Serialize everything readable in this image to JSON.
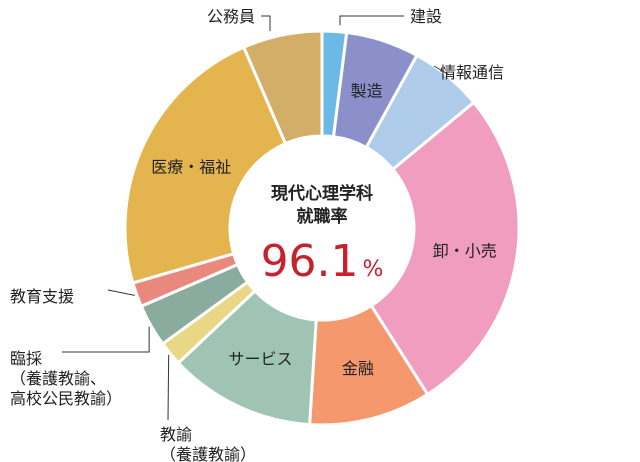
{
  "chart_data": {
    "type": "pie",
    "donut": true,
    "center_text": {
      "line1": "現代心理学科",
      "line2": "就職率",
      "value": "96.1",
      "unit": "%"
    },
    "slices": [
      {
        "label": "建設",
        "value": 2.0,
        "color": "#6cb8e6",
        "label_lines": [
          "建設"
        ]
      },
      {
        "label": "製造",
        "value": 6.0,
        "color": "#8b90cb",
        "label_lines": [
          "製造"
        ]
      },
      {
        "label": "情報通信",
        "value": 6.0,
        "color": "#aecbea",
        "label_lines": [
          "情報通信"
        ]
      },
      {
        "label": "卸・小売",
        "value": 27.0,
        "color": "#f09dc0",
        "label_lines": [
          "卸・小売"
        ]
      },
      {
        "label": "金融",
        "value": 10.0,
        "color": "#f5986e",
        "label_lines": [
          "金融"
        ]
      },
      {
        "label": "サービス",
        "value": 12.0,
        "color": "#9fc4b3",
        "label_lines": [
          "サービス"
        ]
      },
      {
        "label": "教諭（養護教諭）",
        "value": 2.0,
        "color": "#e8d886",
        "label_lines": [
          "教諭",
          "（養護教諭）"
        ]
      },
      {
        "label": "臨採（養護教諭、高校公民教諭）",
        "value": 3.5,
        "color": "#8aac9e",
        "label_lines": [
          "臨採",
          "（養護教諭、",
          "高校公民教諭）"
        ]
      },
      {
        "label": "教育支援",
        "value": 2.0,
        "color": "#e9897e",
        "label_lines": [
          "教育支援"
        ]
      },
      {
        "label": "医療・福祉",
        "value": 23.0,
        "color": "#e4b44f",
        "label_lines": [
          "医療・福祉"
        ]
      },
      {
        "label": "公務員",
        "value": 6.5,
        "color": "#d2ae69",
        "label_lines": [
          "公務員"
        ]
      }
    ]
  }
}
